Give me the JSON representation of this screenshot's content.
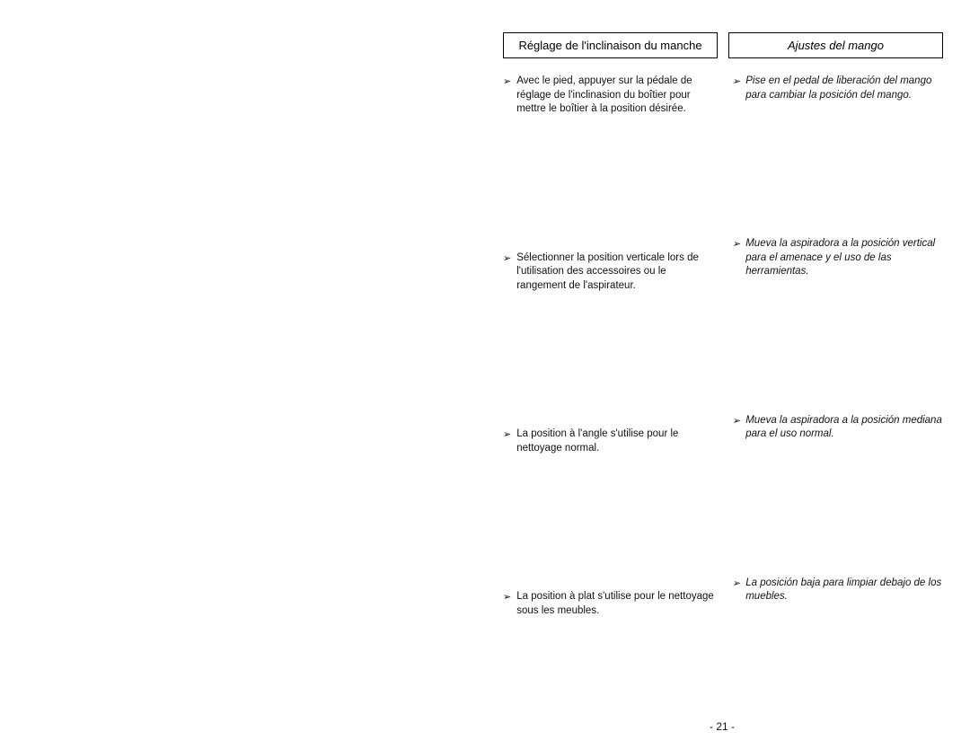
{
  "headers": {
    "french": "Réglage de l'inclinaison du manche",
    "spanish": "Ajustes del mango"
  },
  "sections": [
    {
      "french": "Avec le pied, appuyer sur la pédale de réglage de l'inclinasion du boîtier pour mettre le boîtier à la position désirée.",
      "spanish": "Pise en el pedal de liberación del mango para cambiar la posición del mango."
    },
    {
      "french": "Sélectionner la position verticale lors de l'utilisation des accessoires ou le rangement de l'aspirateur.",
      "spanish": "Mueva la aspiradora a la posición vertical para el amenace y el uso de las herramientas."
    },
    {
      "french": "La position à l'angle s'utilise pour le nettoyage normal.",
      "spanish": "Mueva la aspiradora a la posición mediana para el uso normal."
    },
    {
      "french": "La position à plat s'utilise pour le nettoyage sous les meubles.",
      "spanish": "La posición baja para limpiar debajo de los muebles."
    }
  ],
  "pageNumber": "- 21 -",
  "bulletGlyph": "➢"
}
